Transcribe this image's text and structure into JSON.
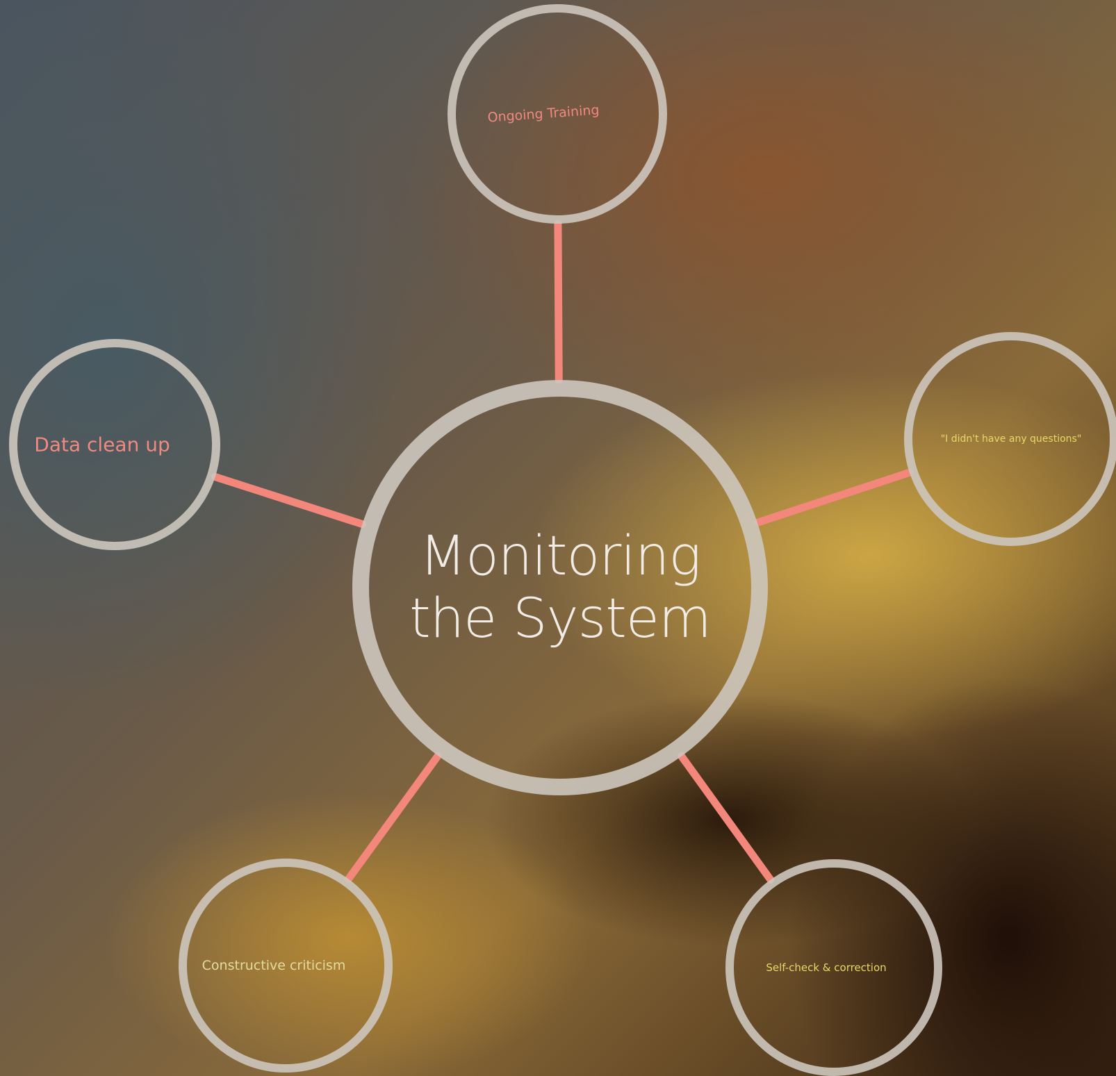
{
  "center": {
    "label": "Monitoring the System",
    "color": "#f2ece6"
  },
  "nodes": [
    {
      "label": "Ongoing Training",
      "color": "#f08a80"
    },
    {
      "label": "Data clean up",
      "color": "#f08a80"
    },
    {
      "label": "\"I didn't have any questions\"",
      "color": "#e8d86a"
    },
    {
      "label": "Constructive criticism",
      "color": "#e3dca0"
    },
    {
      "label": "Self-check & correction",
      "color": "#e8d86a"
    }
  ]
}
